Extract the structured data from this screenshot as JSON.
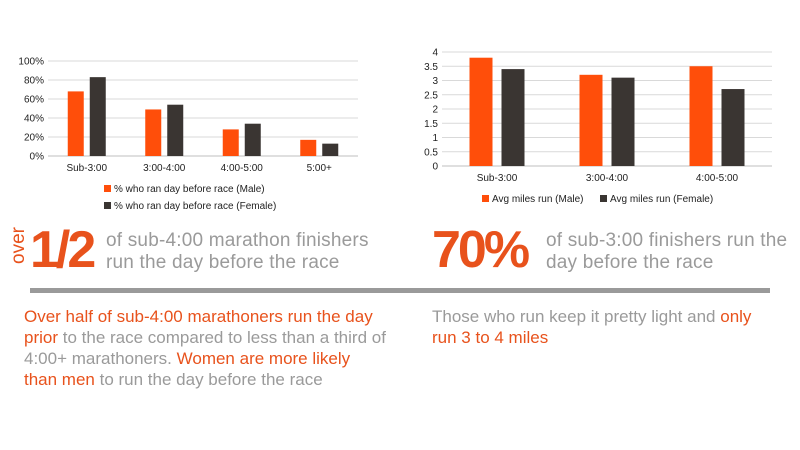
{
  "colors": {
    "orange": "#ff4e0a",
    "dark": "#3a3532",
    "accent_text": "#e8521c",
    "muted_text": "#9a9a9a"
  },
  "chart_data": [
    {
      "type": "bar",
      "categories": [
        "Sub-3:00",
        "3:00-4:00",
        "4:00-5:00",
        "5:00+"
      ],
      "series": [
        {
          "name": "% who ran day before race (Male)",
          "values": [
            68,
            49,
            28,
            17
          ]
        },
        {
          "name": "% who ran day before race (Female)",
          "values": [
            83,
            54,
            34,
            13
          ]
        }
      ],
      "ylim": [
        0,
        100
      ],
      "yticks": [
        "0%",
        "20%",
        "40%",
        "60%",
        "80%",
        "100%"
      ],
      "grid": true,
      "legend_position": "bottom"
    },
    {
      "type": "bar",
      "categories": [
        "Sub-3:00",
        "3:00-4:00",
        "4:00-5:00"
      ],
      "series": [
        {
          "name": "Avg miles run (Male)",
          "values": [
            3.8,
            3.2,
            3.5
          ]
        },
        {
          "name": "Avg miles run (Female)",
          "values": [
            3.4,
            3.1,
            2.7
          ]
        }
      ],
      "ylim": [
        0,
        4
      ],
      "yticks": [
        "0",
        "0.5",
        "1",
        "1.5",
        "2",
        "2.5",
        "3",
        "3.5",
        "4"
      ],
      "grid": true,
      "legend_position": "bottom"
    }
  ],
  "stats": {
    "left": {
      "prefix": "over",
      "value": "1/2",
      "caption_line1": "of sub-4:00 marathon finishers",
      "caption_line2": "run the day before the race"
    },
    "right": {
      "value": "70%",
      "caption_line1": "of sub-3:00 finishers run the",
      "caption_line2": "day before the race"
    }
  },
  "paragraphs": {
    "left": {
      "hl1": "Over half of sub-4:00 marathoners run the day prior",
      "text1": " to the race compared to less than a third of 4:00+ marathoners. ",
      "hl2": "Women are more likely than men",
      "text2": " to run the day before the race"
    },
    "right": {
      "text1": "Those who run keep it pretty light and ",
      "hl1": "only run 3 to 4 miles"
    }
  }
}
